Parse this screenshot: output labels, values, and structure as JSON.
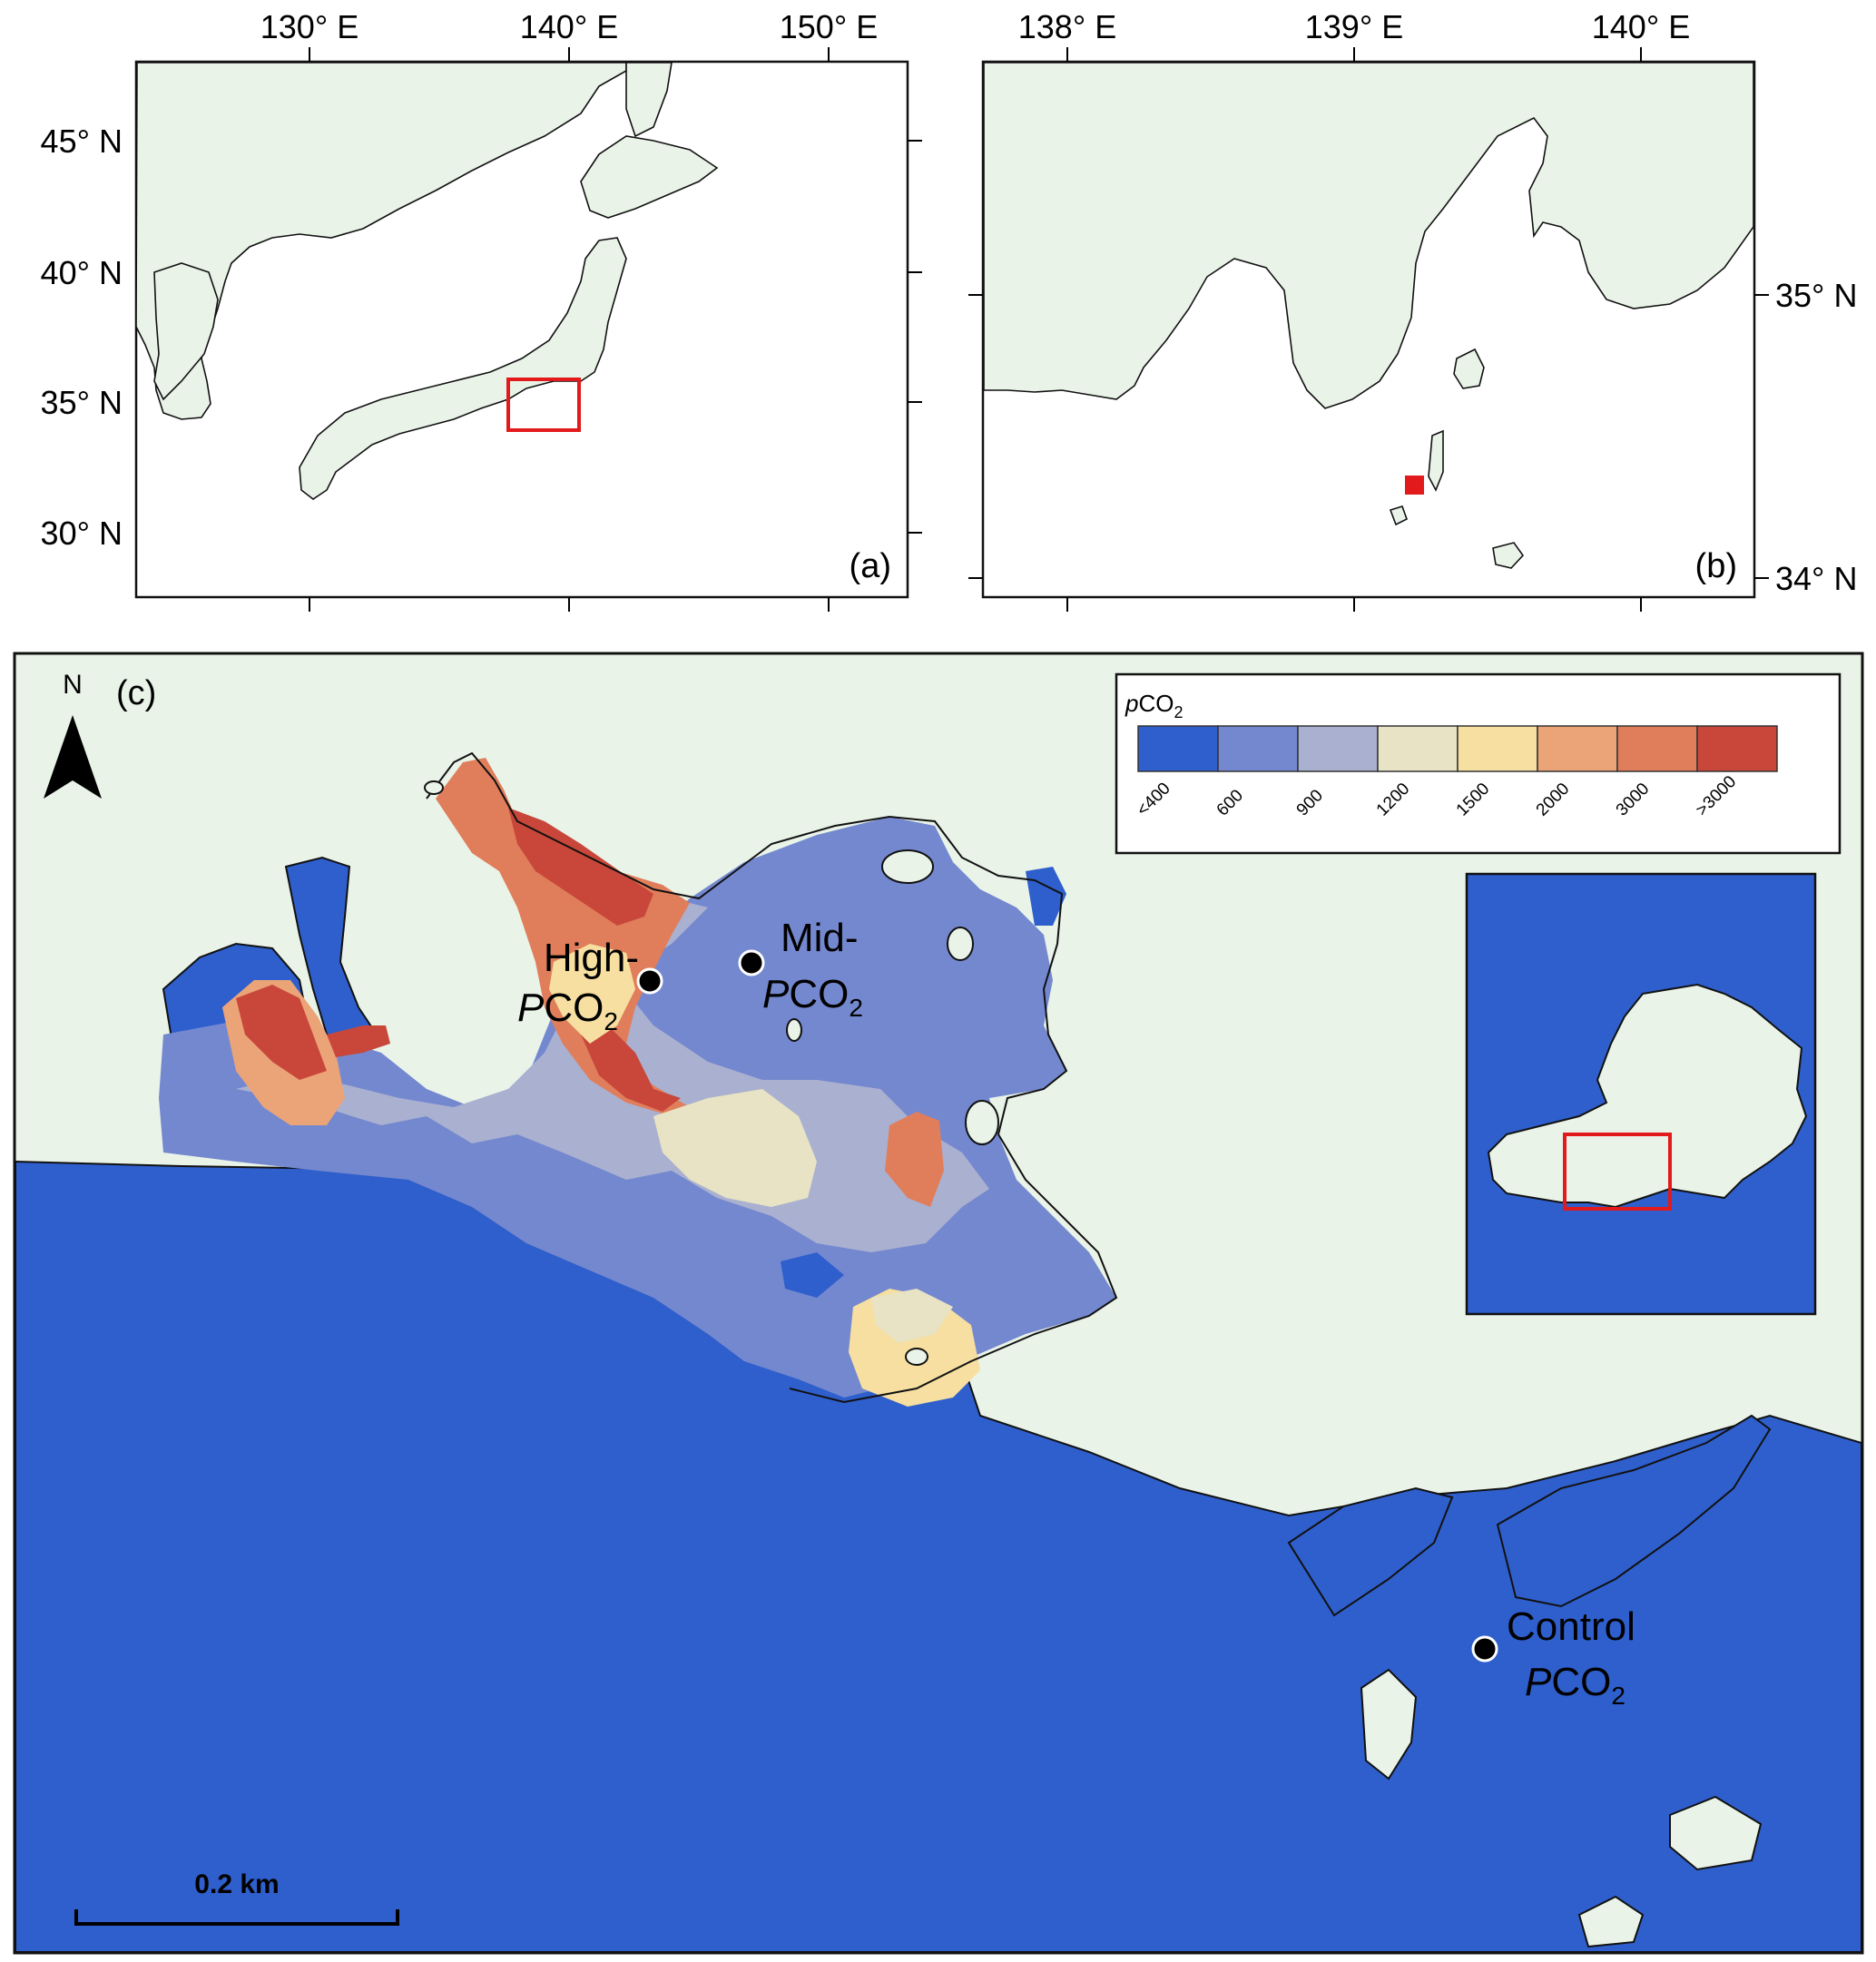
{
  "panel_a": {
    "label": "(a)",
    "x_ticks": [
      "130° E",
      "140° E",
      "150° E"
    ],
    "y_ticks": [
      "45° N",
      "40° N",
      "35° N",
      "30° N"
    ]
  },
  "panel_b": {
    "label": "(b)",
    "x_ticks": [
      "138° E",
      "139° E",
      "140° E"
    ],
    "y_ticks": [
      "35° N",
      "34° N"
    ]
  },
  "panel_c": {
    "label": "(c)",
    "north_arrow": "N",
    "scale_bar": "0.2 km",
    "sites": [
      {
        "line1": "High-",
        "line2_prefix": "P",
        "line2_main": "CO",
        "line2_sub": "2"
      },
      {
        "line1": "Mid-",
        "line2_prefix": "P",
        "line2_main": "CO",
        "line2_sub": "2"
      },
      {
        "line1": "Control",
        "line2_prefix": "P",
        "line2_main": "CO",
        "line2_sub": "2"
      }
    ],
    "legend": {
      "title_prefix": "p",
      "title_main": "CO",
      "title_sub": "2",
      "classes": [
        {
          "label": "<400",
          "color": "#2f5fcc"
        },
        {
          "label": "600",
          "color": "#7488cf"
        },
        {
          "label": "900",
          "color": "#aab0d0"
        },
        {
          "label": "1200",
          "color": "#e7e3c4"
        },
        {
          "label": "1500",
          "color": "#f6dfa0"
        },
        {
          "label": "2000",
          "color": "#eba478"
        },
        {
          "label": "3000",
          "color": "#e07e5b"
        },
        {
          "label": ">3000",
          "color": "#c8473a"
        }
      ]
    }
  },
  "colors": {
    "land": "#e9f3e8",
    "sea_map": "#ffffff",
    "sea_low": "#2f5fcc",
    "highlight_box": "#e31a1c"
  }
}
